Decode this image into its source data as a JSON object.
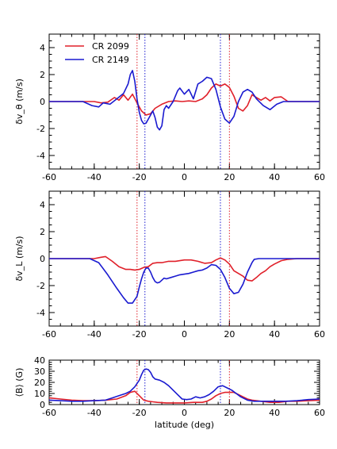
{
  "chart_data": [
    {
      "type": "line",
      "panel": "top",
      "ylabel": "δv_θ (m/s)",
      "xlim": [
        -60,
        60
      ],
      "ylim": [
        -5,
        5
      ],
      "xticks": [
        "-60",
        "-40",
        "-20",
        "0",
        "20",
        "40",
        "60"
      ],
      "yticks": [
        "-4",
        "-2",
        "0",
        "2",
        "4"
      ],
      "legend_position": "top-left",
      "vlines": [
        {
          "x": -21,
          "color": "#e0202a"
        },
        {
          "x": -17.5,
          "color": "#1a1ad0"
        },
        {
          "x": 16,
          "color": "#1a1ad0"
        },
        {
          "x": 20,
          "color": "#e0202a"
        }
      ],
      "series": [
        {
          "name": "CR 2099",
          "color": "#e0202a",
          "x": [
            -60,
            -45,
            -40,
            -37,
            -34,
            -31,
            -29,
            -27,
            -25,
            -23,
            -21,
            -19,
            -17,
            -15,
            -13,
            -10,
            -7,
            -4,
            -1,
            2,
            5,
            8,
            10,
            12,
            14,
            16,
            18,
            20,
            22,
            24,
            26,
            28,
            30,
            32,
            34,
            36,
            38,
            40,
            43,
            46,
            50,
            60
          ],
          "y": [
            0,
            0,
            0,
            -0.1,
            -0.05,
            0.3,
            0.1,
            0.5,
            0.1,
            0.55,
            -0.1,
            -0.7,
            -1,
            -0.9,
            -0.5,
            -0.2,
            0,
            0.05,
            0,
            0.05,
            0,
            0.2,
            0.5,
            1,
            1.3,
            1.15,
            1.3,
            1.05,
            0.4,
            -0.5,
            -0.7,
            -0.3,
            0.5,
            0.3,
            0.1,
            0.3,
            0.05,
            0.3,
            0.35,
            0,
            0,
            0
          ]
        },
        {
          "name": "CR 2149",
          "color": "#1a1ad0",
          "x": [
            -60,
            -45,
            -41,
            -38,
            -36,
            -33,
            -30,
            -27,
            -25,
            -24,
            -23,
            -22,
            -21,
            -20,
            -19,
            -18,
            -17,
            -15,
            -14,
            -13,
            -12,
            -11,
            -10,
            -9,
            -8,
            -7,
            -5,
            -3,
            -2,
            0,
            2,
            4,
            6,
            8,
            10,
            12,
            14,
            16,
            18,
            20,
            22,
            24,
            26,
            28,
            30,
            32,
            35,
            38,
            41,
            44,
            50,
            60
          ],
          "y": [
            0,
            0,
            -0.3,
            -0.4,
            -0.1,
            -0.2,
            0.2,
            0.6,
            1.3,
            2,
            2.3,
            1.5,
            0.2,
            -0.8,
            -1.4,
            -1.65,
            -1.6,
            -1,
            -0.7,
            -1.2,
            -1.9,
            -2.1,
            -1.8,
            -0.6,
            -0.3,
            -0.5,
            0,
            0.8,
            1,
            0.55,
            0.9,
            0.2,
            1.3,
            1.5,
            1.8,
            1.7,
            0.9,
            -0.4,
            -1.3,
            -1.6,
            -1.1,
            0,
            0.7,
            0.9,
            0.7,
            0.2,
            -0.3,
            -0.6,
            -0.2,
            0,
            0,
            0
          ]
        }
      ]
    },
    {
      "type": "line",
      "panel": "middle",
      "ylabel": "δv_L (m/s)",
      "xlim": [
        -60,
        60
      ],
      "ylim": [
        -5,
        5
      ],
      "xticks": [
        "-60",
        "-40",
        "-20",
        "0",
        "20",
        "40",
        "60"
      ],
      "yticks": [
        "-4",
        "-2",
        "0",
        "2",
        "4"
      ],
      "vlines": [
        {
          "x": -21,
          "color": "#e0202a"
        },
        {
          "x": -17.5,
          "color": "#1a1ad0"
        },
        {
          "x": 16,
          "color": "#1a1ad0"
        },
        {
          "x": 20,
          "color": "#e0202a"
        }
      ],
      "series": [
        {
          "name": "CR 2099",
          "color": "#e0202a",
          "x": [
            -60,
            -40,
            -37,
            -35,
            -32,
            -29,
            -26,
            -24,
            -22,
            -20,
            -18,
            -16,
            -14,
            -12,
            -10,
            -7,
            -4,
            -2,
            0,
            3,
            6,
            9,
            12,
            14,
            16,
            18,
            20,
            22,
            24,
            26,
            28,
            30,
            32,
            34,
            36,
            38,
            40,
            43,
            46,
            50,
            60
          ],
          "y": [
            0,
            0,
            0.1,
            0.15,
            -0.2,
            -0.6,
            -0.8,
            -0.8,
            -0.85,
            -0.8,
            -0.65,
            -0.6,
            -0.35,
            -0.3,
            -0.3,
            -0.2,
            -0.2,
            -0.15,
            -0.1,
            -0.1,
            -0.2,
            -0.35,
            -0.3,
            -0.1,
            0.05,
            -0.1,
            -0.4,
            -0.9,
            -1.1,
            -1.3,
            -1.6,
            -1.65,
            -1.4,
            -1.1,
            -0.9,
            -0.6,
            -0.4,
            -0.15,
            -0.05,
            0,
            0
          ]
        },
        {
          "name": "CR 2149",
          "color": "#1a1ad0",
          "x": [
            -60,
            -42,
            -38,
            -34,
            -30,
            -27,
            -25,
            -23,
            -21,
            -20,
            -19,
            -18,
            -17,
            -16,
            -15,
            -14,
            -13,
            -12,
            -11,
            -10,
            -9,
            -8,
            -6,
            -4,
            -2,
            0,
            2,
            4,
            6,
            8,
            10,
            12,
            14,
            16,
            18,
            20,
            22,
            24,
            26,
            28,
            30,
            31,
            33,
            35,
            38,
            40,
            60
          ],
          "y": [
            0,
            0,
            -0.3,
            -1.2,
            -2.2,
            -2.9,
            -3.3,
            -3.3,
            -2.8,
            -2.1,
            -1.5,
            -1,
            -0.7,
            -0.7,
            -1,
            -1.4,
            -1.7,
            -1.8,
            -1.75,
            -1.6,
            -1.45,
            -1.5,
            -1.4,
            -1.3,
            -1.2,
            -1.15,
            -1.1,
            -1.0,
            -0.9,
            -0.85,
            -0.7,
            -0.45,
            -0.5,
            -0.8,
            -1.4,
            -2.2,
            -2.6,
            -2.5,
            -1.9,
            -1,
            -0.3,
            -0.05,
            0,
            0,
            0,
            0,
            0
          ]
        }
      ]
    },
    {
      "type": "line",
      "panel": "bottom",
      "ylabel": "⟨B⟩ (G)",
      "xlabel": "latitude (deg)",
      "xlim": [
        -60,
        60
      ],
      "ylim": [
        0,
        40
      ],
      "xticks": [
        "-60",
        "-40",
        "-20",
        "0",
        "20",
        "40",
        "60"
      ],
      "yticks": [
        "0",
        "10",
        "20",
        "30",
        "40"
      ],
      "vlines": [
        {
          "x": -21,
          "color": "#e0202a"
        },
        {
          "x": -17.5,
          "color": "#1a1ad0"
        },
        {
          "x": 16,
          "color": "#1a1ad0"
        },
        {
          "x": 20,
          "color": "#e0202a"
        }
      ],
      "series": [
        {
          "name": "CR 2099",
          "color": "#e0202a",
          "x": [
            -60,
            -55,
            -50,
            -45,
            -40,
            -35,
            -30,
            -26,
            -24,
            -22,
            -20,
            -18,
            -16,
            -14,
            -12,
            -8,
            -4,
            0,
            4,
            8,
            10,
            12,
            14,
            16,
            18,
            20,
            22,
            24,
            26,
            28,
            30,
            34,
            38,
            42,
            46,
            50,
            55,
            60
          ],
          "y": [
            6,
            5,
            4,
            3.5,
            3.5,
            4,
            5,
            8,
            11,
            12,
            8,
            4,
            3,
            2.5,
            2,
            1.5,
            1.5,
            1.5,
            2,
            2,
            3,
            5,
            8,
            10,
            11,
            11,
            11,
            9,
            7,
            5,
            4,
            3,
            2,
            2,
            3,
            3,
            3.5,
            4
          ]
        },
        {
          "name": "CR 2149",
          "color": "#1a1ad0",
          "x": [
            -60,
            -55,
            -50,
            -45,
            -40,
            -35,
            -32,
            -29,
            -26,
            -24,
            -22,
            -20,
            -19,
            -18,
            -17,
            -16,
            -15,
            -14,
            -13,
            -11,
            -9,
            -7,
            -5,
            -3,
            -1,
            1,
            3,
            5,
            7,
            9,
            11,
            13,
            15,
            17,
            19,
            21,
            23,
            25,
            28,
            31,
            35,
            40,
            45,
            50,
            55,
            60
          ],
          "y": [
            4,
            3.5,
            3,
            3,
            3.5,
            4,
            6,
            8,
            10,
            12,
            16,
            22,
            27,
            31,
            32,
            31.5,
            29,
            25,
            23,
            22,
            20,
            17,
            13,
            9,
            5,
            4.5,
            5,
            7,
            6,
            7,
            9,
            12,
            16,
            17,
            15,
            13,
            10,
            7,
            4,
            3,
            3,
            3,
            3,
            3.5,
            4.5,
            5
          ]
        }
      ]
    }
  ]
}
